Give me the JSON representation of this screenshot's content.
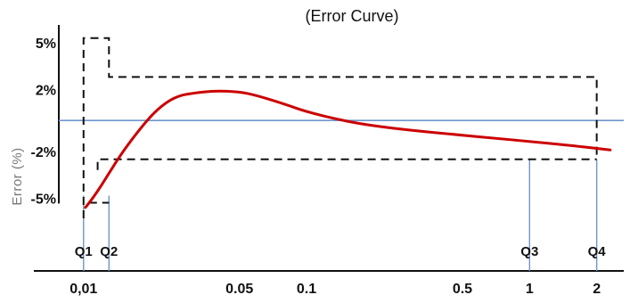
{
  "chart_data": {
    "type": "line",
    "title": "(Error Curve)",
    "ylabel": "Error (%)",
    "xlabel": "",
    "x_scale": "log",
    "x_tick_labels": [
      "0,01",
      "0.05",
      "0.1",
      "0.5",
      "1",
      "2"
    ],
    "x_ticks": [
      0.01,
      0.05,
      0.1,
      0.5,
      1,
      2
    ],
    "y_tick_labels": [
      "5%",
      "2%",
      "-2%",
      "-5%"
    ],
    "y_ticks": [
      5,
      2,
      -2,
      -5
    ],
    "xlim": [
      0.007,
      2.2
    ],
    "ylim": [
      -6.3,
      5.8
    ],
    "grid": false,
    "markers": [
      {
        "label": "Q1",
        "x": 0.01
      },
      {
        "label": "Q2",
        "x": 0.013
      },
      {
        "label": "Q3",
        "x": 1
      },
      {
        "label": "Q4",
        "x": 2
      }
    ],
    "series": [
      {
        "role": "error-curve",
        "color": "#cc0000",
        "x": [
          0.0102,
          0.011,
          0.012,
          0.013,
          0.015,
          0.018,
          0.021,
          0.024,
          0.027,
          0.03,
          0.035,
          0.04,
          0.05,
          0.06,
          0.08,
          0.1,
          0.15,
          0.2,
          0.3,
          0.5,
          0.7,
          1.0,
          1.5,
          2.0,
          2.3
        ],
        "values": [
          -5.6,
          -5.0,
          -4.2,
          -3.4,
          -2.0,
          -0.5,
          0.6,
          1.25,
          1.6,
          1.72,
          1.85,
          1.9,
          1.85,
          1.6,
          1.05,
          0.55,
          -0.05,
          -0.35,
          -0.65,
          -0.95,
          -1.15,
          -1.35,
          -1.6,
          -1.8,
          -1.9
        ]
      }
    ],
    "reference_lines": [
      {
        "role": "zero-line",
        "y": 0,
        "color": "#6e96cc"
      }
    ],
    "error_limits": {
      "upper": [
        {
          "x": [
            0.01,
            0.013
          ],
          "y": 5.3
        },
        {
          "x": [
            0.013,
            2.0
          ],
          "y": 2.8
        }
      ],
      "lower": [
        {
          "x": [
            0.01,
            0.013
          ],
          "y": -5.3
        },
        {
          "x": [
            0.012,
            2.0
          ],
          "y": -2.5
        }
      ]
    }
  }
}
